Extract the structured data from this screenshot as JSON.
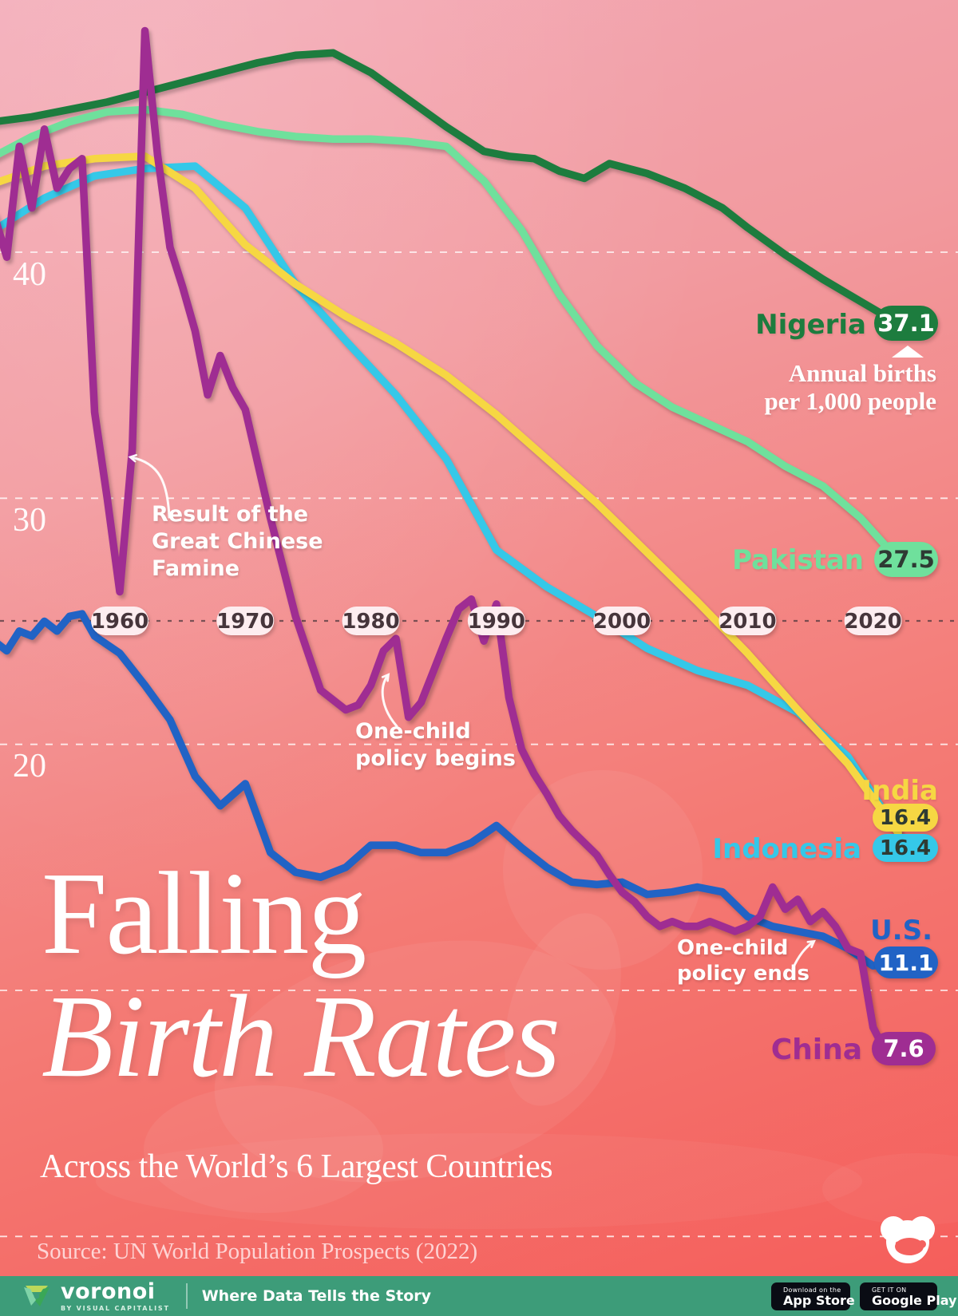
{
  "chart_data": {
    "type": "line",
    "title": "Falling Birth Rates",
    "subtitle": "Across the World’s 6 Largest Countries",
    "unit": "Annual births per 1,000 people",
    "x_axis": {
      "ticks": [
        1960,
        1970,
        1980,
        1990,
        2000,
        2010,
        2020
      ],
      "range": [
        1950,
        2022
      ]
    },
    "y_axis": {
      "gridlines": [
        40,
        30,
        20,
        10,
        0
      ],
      "labeled": [
        40,
        30,
        20
      ],
      "range": [
        0,
        50
      ],
      "grid": "dashed"
    },
    "legend_position": "end-of-line labels",
    "series": [
      {
        "name": "Nigeria",
        "color": "#1d7c3e",
        "final_label": "37.1",
        "points": [
          [
            1950,
            45.3
          ],
          [
            1953,
            45.5
          ],
          [
            1956,
            45.8
          ],
          [
            1959,
            46.1
          ],
          [
            1962,
            46.5
          ],
          [
            1965,
            46.9
          ],
          [
            1968,
            47.3
          ],
          [
            1971,
            47.7
          ],
          [
            1974,
            48.0
          ],
          [
            1977,
            48.1
          ],
          [
            1980,
            47.3
          ],
          [
            1983,
            46.2
          ],
          [
            1986,
            45.1
          ],
          [
            1989,
            44.1
          ],
          [
            1991,
            43.9
          ],
          [
            1993,
            43.8
          ],
          [
            1995,
            43.3
          ],
          [
            1997,
            43.0
          ],
          [
            1999,
            43.6
          ],
          [
            2002,
            43.2
          ],
          [
            2005,
            42.6
          ],
          [
            2008,
            41.8
          ],
          [
            2010,
            41.0
          ],
          [
            2013,
            39.9
          ],
          [
            2016,
            38.9
          ],
          [
            2019,
            38.0
          ],
          [
            2022,
            37.1
          ]
        ]
      },
      {
        "name": "Pakistan",
        "color": "#6fe09c",
        "final_label": "27.5",
        "points": [
          [
            1950,
            43.9
          ],
          [
            1953,
            44.7
          ],
          [
            1956,
            45.3
          ],
          [
            1959,
            45.7
          ],
          [
            1962,
            45.8
          ],
          [
            1965,
            45.6
          ],
          [
            1968,
            45.2
          ],
          [
            1971,
            44.9
          ],
          [
            1974,
            44.7
          ],
          [
            1977,
            44.6
          ],
          [
            1980,
            44.6
          ],
          [
            1983,
            44.5
          ],
          [
            1986,
            44.3
          ],
          [
            1989,
            42.9
          ],
          [
            1992,
            40.9
          ],
          [
            1995,
            38.3
          ],
          [
            1998,
            36.2
          ],
          [
            2001,
            34.7
          ],
          [
            2004,
            33.7
          ],
          [
            2007,
            33.0
          ],
          [
            2010,
            32.3
          ],
          [
            2013,
            31.3
          ],
          [
            2016,
            30.5
          ],
          [
            2019,
            29.2
          ],
          [
            2022,
            27.5
          ]
        ]
      },
      {
        "name": "Indonesia",
        "color": "#35c8e8",
        "final_label": "16.4",
        "points": [
          [
            1950,
            40.9
          ],
          [
            1954,
            42.2
          ],
          [
            1958,
            43.1
          ],
          [
            1962,
            43.4
          ],
          [
            1966,
            43.5
          ],
          [
            1970,
            41.8
          ],
          [
            1974,
            38.7
          ],
          [
            1978,
            36.4
          ],
          [
            1982,
            34.2
          ],
          [
            1986,
            31.6
          ],
          [
            1990,
            27.9
          ],
          [
            1994,
            26.4
          ],
          [
            1998,
            25.2
          ],
          [
            2002,
            23.9
          ],
          [
            2006,
            23.0
          ],
          [
            2010,
            22.4
          ],
          [
            2014,
            21.3
          ],
          [
            2018,
            19.5
          ],
          [
            2022,
            16.4
          ]
        ]
      },
      {
        "name": "India",
        "color": "#f6d743",
        "final_label": "16.4",
        "points": [
          [
            1950,
            42.8
          ],
          [
            1954,
            43.5
          ],
          [
            1958,
            43.8
          ],
          [
            1962,
            43.9
          ],
          [
            1966,
            42.6
          ],
          [
            1970,
            40.3
          ],
          [
            1974,
            38.7
          ],
          [
            1978,
            37.4
          ],
          [
            1982,
            36.3
          ],
          [
            1986,
            35.0
          ],
          [
            1990,
            33.4
          ],
          [
            1994,
            31.6
          ],
          [
            1998,
            29.8
          ],
          [
            2002,
            27.8
          ],
          [
            2006,
            25.8
          ],
          [
            2010,
            23.7
          ],
          [
            2014,
            21.4
          ],
          [
            2018,
            19.2
          ],
          [
            2022,
            16.4
          ]
        ]
      },
      {
        "name": "U.S.",
        "color": "#2163c5",
        "final_label": "11.1",
        "points": [
          [
            1950,
            24.2
          ],
          [
            1951,
            23.8
          ],
          [
            1952,
            24.6
          ],
          [
            1953,
            24.4
          ],
          [
            1954,
            25.0
          ],
          [
            1955,
            24.6
          ],
          [
            1956,
            25.2
          ],
          [
            1957,
            25.3
          ],
          [
            1958,
            24.4
          ],
          [
            1960,
            23.7
          ],
          [
            1962,
            22.4
          ],
          [
            1964,
            21.0
          ],
          [
            1966,
            18.7
          ],
          [
            1968,
            17.5
          ],
          [
            1970,
            18.4
          ],
          [
            1972,
            15.6
          ],
          [
            1974,
            14.8
          ],
          [
            1976,
            14.6
          ],
          [
            1978,
            15.0
          ],
          [
            1980,
            15.9
          ],
          [
            1982,
            15.9
          ],
          [
            1984,
            15.6
          ],
          [
            1986,
            15.6
          ],
          [
            1988,
            16.0
          ],
          [
            1990,
            16.7
          ],
          [
            1992,
            15.8
          ],
          [
            1994,
            15.0
          ],
          [
            1996,
            14.4
          ],
          [
            1998,
            14.3
          ],
          [
            2000,
            14.4
          ],
          [
            2002,
            13.9
          ],
          [
            2004,
            14.0
          ],
          [
            2006,
            14.2
          ],
          [
            2008,
            14.0
          ],
          [
            2010,
            13.0
          ],
          [
            2012,
            12.6
          ],
          [
            2014,
            12.4
          ],
          [
            2016,
            12.2
          ],
          [
            2018,
            11.7
          ],
          [
            2020,
            11.0
          ],
          [
            2022,
            11.1
          ]
        ]
      },
      {
        "name": "China",
        "color": "#9f2d92",
        "final_label": "7.6",
        "points": [
          [
            1950,
            41.5
          ],
          [
            1951,
            39.8
          ],
          [
            1952,
            44.3
          ],
          [
            1953,
            41.8
          ],
          [
            1954,
            45.0
          ],
          [
            1955,
            42.6
          ],
          [
            1956,
            43.4
          ],
          [
            1957,
            43.8
          ],
          [
            1958,
            33.5
          ],
          [
            1959,
            30.0
          ],
          [
            1960,
            26.2
          ],
          [
            1961,
            32.0
          ],
          [
            1962,
            49.0
          ],
          [
            1963,
            44.0
          ],
          [
            1964,
            40.2
          ],
          [
            1965,
            38.6
          ],
          [
            1966,
            36.8
          ],
          [
            1967,
            34.2
          ],
          [
            1968,
            35.8
          ],
          [
            1969,
            34.5
          ],
          [
            1970,
            33.6
          ],
          [
            1972,
            29.2
          ],
          [
            1974,
            25.2
          ],
          [
            1976,
            22.2
          ],
          [
            1978,
            21.4
          ],
          [
            1979,
            21.6
          ],
          [
            1980,
            22.4
          ],
          [
            1981,
            23.8
          ],
          [
            1982,
            24.3
          ],
          [
            1983,
            21.1
          ],
          [
            1984,
            21.7
          ],
          [
            1985,
            23.0
          ],
          [
            1986,
            24.3
          ],
          [
            1987,
            25.5
          ],
          [
            1988,
            25.9
          ],
          [
            1989,
            24.2
          ],
          [
            1990,
            25.7
          ],
          [
            1991,
            21.9
          ],
          [
            1992,
            19.8
          ],
          [
            1993,
            18.8
          ],
          [
            1994,
            18.0
          ],
          [
            1995,
            17.1
          ],
          [
            1996,
            16.5
          ],
          [
            1997,
            16.0
          ],
          [
            1998,
            15.5
          ],
          [
            1999,
            14.7
          ],
          [
            2000,
            14.0
          ],
          [
            2001,
            13.6
          ],
          [
            2002,
            13.0
          ],
          [
            2003,
            12.6
          ],
          [
            2004,
            12.8
          ],
          [
            2005,
            12.6
          ],
          [
            2006,
            12.6
          ],
          [
            2007,
            12.8
          ],
          [
            2008,
            12.6
          ],
          [
            2009,
            12.4
          ],
          [
            2010,
            12.6
          ],
          [
            2011,
            13.0
          ],
          [
            2012,
            14.2
          ],
          [
            2013,
            13.3
          ],
          [
            2014,
            13.7
          ],
          [
            2015,
            12.8
          ],
          [
            2016,
            13.2
          ],
          [
            2017,
            12.6
          ],
          [
            2018,
            11.7
          ],
          [
            2019,
            11.5
          ],
          [
            2020,
            8.5
          ],
          [
            2021,
            7.5
          ],
          [
            2022,
            7.6
          ]
        ]
      }
    ],
    "annotations": {
      "famine": {
        "lines": [
          "Result of the",
          "Great Chinese",
          "Famine"
        ]
      },
      "policy_begins": {
        "lines": [
          "One-child",
          "policy begins"
        ]
      },
      "policy_ends": {
        "lines": [
          "One-child",
          "policy ends"
        ]
      }
    },
    "unit_callout": {
      "lines": [
        "Annual births",
        "per 1,000 people"
      ]
    }
  },
  "title": {
    "line1": "Falling",
    "line2": "Birth Rates",
    "subtitle": "Across the World’s 6 Largest Countries"
  },
  "source": "Source: UN World Population Prospects (2022)",
  "footer": {
    "brand": "voronoi",
    "brand_sub": "BY VISUAL CAPITALIST",
    "tagline": "Where Data Tells the Story",
    "appstore": {
      "line1": "Download on the",
      "line2": "App Store"
    },
    "googleplay": {
      "line1": "GET IT ON",
      "line2": "Google Play"
    }
  },
  "colors": {
    "background_top": "#f3a9b6",
    "background_bottom": "#f55c59",
    "footer_bg": "#3d9c79",
    "year_pill_bg": "#fdedf0",
    "badge_dark_text": "#2e3a33"
  }
}
